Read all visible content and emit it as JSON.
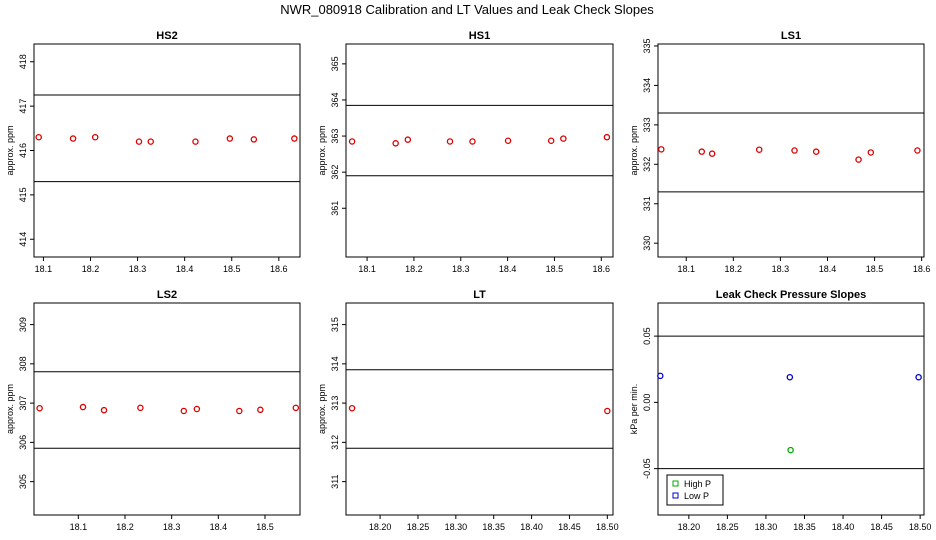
{
  "title": "NWR_080918  Calibration and LT Values and Leak Check Slopes",
  "chart_data": [
    {
      "type": "scatter",
      "title": "HS2",
      "ylabel": "approx. ppm",
      "xlim": [
        18.08,
        18.645
      ],
      "ylim": [
        413.6,
        418.4
      ],
      "xticks": [
        "18.1",
        "18.2",
        "18.3",
        "18.4",
        "18.5",
        "18.6"
      ],
      "xtick_values": [
        18.1,
        18.2,
        18.3,
        18.4,
        18.5,
        18.6
      ],
      "yticks": [
        "414",
        "415",
        "416",
        "417",
        "418"
      ],
      "ytick_values": [
        414,
        415,
        416,
        417,
        418
      ],
      "hlines": [
        417.25,
        415.3
      ],
      "series": [
        {
          "color": "#dd0000",
          "x": [
            18.09,
            18.163,
            18.21,
            18.303,
            18.328,
            18.423,
            18.496,
            18.547,
            18.633
          ],
          "y": [
            416.3,
            416.27,
            416.3,
            416.2,
            416.2,
            416.2,
            416.27,
            416.25,
            416.27
          ]
        }
      ]
    },
    {
      "type": "scatter",
      "title": "HS1",
      "ylabel": "approx. ppm",
      "xlim": [
        18.055,
        18.625
      ],
      "ylim": [
        359.65,
        365.55
      ],
      "xticks": [
        "18.1",
        "18.2",
        "18.3",
        "18.4",
        "18.5",
        "18.6"
      ],
      "xtick_values": [
        18.1,
        18.2,
        18.3,
        18.4,
        18.5,
        18.6
      ],
      "yticks": [
        "361",
        "362",
        "363",
        "364",
        "365"
      ],
      "ytick_values": [
        361,
        362,
        363,
        364,
        365
      ],
      "hlines": [
        363.85,
        361.9
      ],
      "series": [
        {
          "color": "#dd0000",
          "x": [
            18.068,
            18.161,
            18.187,
            18.277,
            18.325,
            18.401,
            18.493,
            18.519,
            18.612
          ],
          "y": [
            362.85,
            362.8,
            362.9,
            362.85,
            362.85,
            362.87,
            362.87,
            362.93,
            362.97
          ]
        }
      ]
    },
    {
      "type": "scatter",
      "title": "LS1",
      "ylabel": "approx. ppm",
      "xlim": [
        18.04,
        18.605
      ],
      "ylim": [
        329.65,
        335.05
      ],
      "xticks": [
        "18.1",
        "18.2",
        "18.3",
        "18.4",
        "18.5",
        "18.6"
      ],
      "xtick_values": [
        18.1,
        18.2,
        18.3,
        18.4,
        18.5,
        18.6
      ],
      "yticks": [
        "330",
        "331",
        "332",
        "333",
        "334",
        "335"
      ],
      "ytick_values": [
        330,
        331,
        332,
        333,
        334,
        335
      ],
      "hlines": [
        333.3,
        331.3
      ],
      "series": [
        {
          "color": "#dd0000",
          "x": [
            18.047,
            18.133,
            18.155,
            18.255,
            18.33,
            18.376,
            18.466,
            18.492,
            18.591
          ],
          "y": [
            332.38,
            332.32,
            332.27,
            332.37,
            332.35,
            332.32,
            332.12,
            332.3,
            332.35
          ]
        }
      ]
    },
    {
      "type": "scatter",
      "title": "LS2",
      "ylabel": "approx. ppm",
      "xlim": [
        18.005,
        18.575
      ],
      "ylim": [
        304.15,
        309.55
      ],
      "xticks": [
        "18.1",
        "18.2",
        "18.3",
        "18.4",
        "18.5"
      ],
      "xtick_values": [
        18.1,
        18.2,
        18.3,
        18.4,
        18.5
      ],
      "yticks": [
        "305",
        "306",
        "307",
        "308",
        "309"
      ],
      "ytick_values": [
        305,
        306,
        307,
        308,
        309
      ],
      "hlines": [
        307.8,
        305.85
      ],
      "series": [
        {
          "color": "#dd0000",
          "x": [
            18.017,
            18.11,
            18.155,
            18.233,
            18.326,
            18.354,
            18.445,
            18.49,
            18.566
          ],
          "y": [
            306.87,
            306.9,
            306.82,
            306.88,
            306.8,
            306.85,
            306.8,
            306.83,
            306.88
          ]
        }
      ]
    },
    {
      "type": "scatter",
      "title": "LT",
      "ylabel": "approx. ppm",
      "xlim": [
        18.155,
        18.5075
      ],
      "ylim": [
        310.15,
        315.55
      ],
      "xticks": [
        "18.20",
        "18.25",
        "18.30",
        "18.35",
        "18.40",
        "18.45",
        "18.50"
      ],
      "xtick_values": [
        18.2,
        18.25,
        18.3,
        18.35,
        18.4,
        18.45,
        18.5
      ],
      "yticks": [
        "311",
        "312",
        "313",
        "314",
        "315"
      ],
      "ytick_values": [
        311,
        312,
        313,
        314,
        315
      ],
      "hlines": [
        313.85,
        311.85
      ],
      "series": [
        {
          "color": "#dd0000",
          "x": [
            18.163,
            18.5
          ],
          "y": [
            312.87,
            312.8
          ]
        }
      ]
    },
    {
      "type": "scatter",
      "title": "Leak Check Pressure Slopes",
      "ylabel": "kPa per min.",
      "xlim": [
        18.16,
        18.505
      ],
      "ylim": [
        -0.085,
        0.075
      ],
      "xticks": [
        "18.20",
        "18.25",
        "18.30",
        "18.35",
        "18.40",
        "18.45",
        "18.50"
      ],
      "xtick_values": [
        18.2,
        18.25,
        18.3,
        18.35,
        18.4,
        18.45,
        18.5
      ],
      "yticks": [
        "-0.05",
        "0.00",
        "0.05"
      ],
      "ytick_values": [
        -0.05,
        0.0,
        0.05
      ],
      "hlines": [
        0.05,
        -0.05
      ],
      "legend": {
        "position": "bottom-left",
        "entries": [
          "High P",
          "Low P"
        ]
      },
      "series": [
        {
          "name": "High P",
          "color": "#00aa00",
          "x": [
            18.332
          ],
          "y": [
            -0.036
          ]
        },
        {
          "name": "Low P",
          "color": "#0000cc",
          "x": [
            18.163,
            18.331,
            18.498
          ],
          "y": [
            0.02,
            0.019,
            0.019
          ]
        }
      ]
    }
  ]
}
